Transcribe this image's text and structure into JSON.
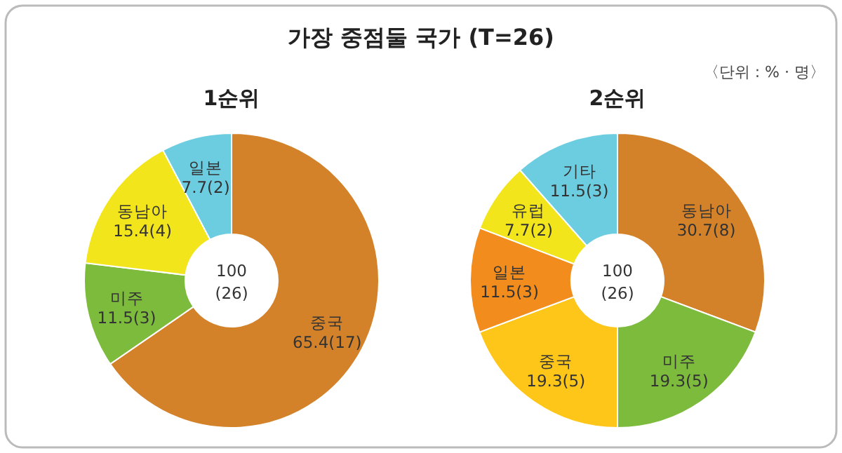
{
  "chart_data": [
    {
      "type": "donut",
      "title": "1순위",
      "categories": [
        "중국",
        "미주",
        "동남아",
        "일본"
      ],
      "values": [
        65.4,
        11.5,
        15.4,
        7.7
      ],
      "value_labels": [
        "65.4(17)",
        "11.5(3)",
        "15.4(4)",
        "7.7(2)"
      ],
      "colors": [
        "#d4822a",
        "#7dbb3c",
        "#f2e51c",
        "#6ccde0"
      ],
      "annotations": [
        "가장 중점둘 국가 (T=26)",
        "〈단위 : % · 명〉",
        "100",
        "(26)"
      ]
    },
    {
      "type": "donut",
      "title": "2순위",
      "categories": [
        "동남아",
        "미주",
        "중국",
        "일본",
        "유럽",
        "기타"
      ],
      "values": [
        30.7,
        19.3,
        19.3,
        11.5,
        7.7,
        11.5
      ],
      "value_labels": [
        "30.7(8)",
        "19.3(5)",
        "19.3(5)",
        "11.5(3)",
        "7.7(2)",
        "11.5(3)"
      ],
      "colors": [
        "#d4822a",
        "#7dbb3c",
        "#ffc61a",
        "#f28c1c",
        "#f2e51c",
        "#6ccde0"
      ],
      "annotations": [
        "100",
        "(26)"
      ]
    }
  ]
}
